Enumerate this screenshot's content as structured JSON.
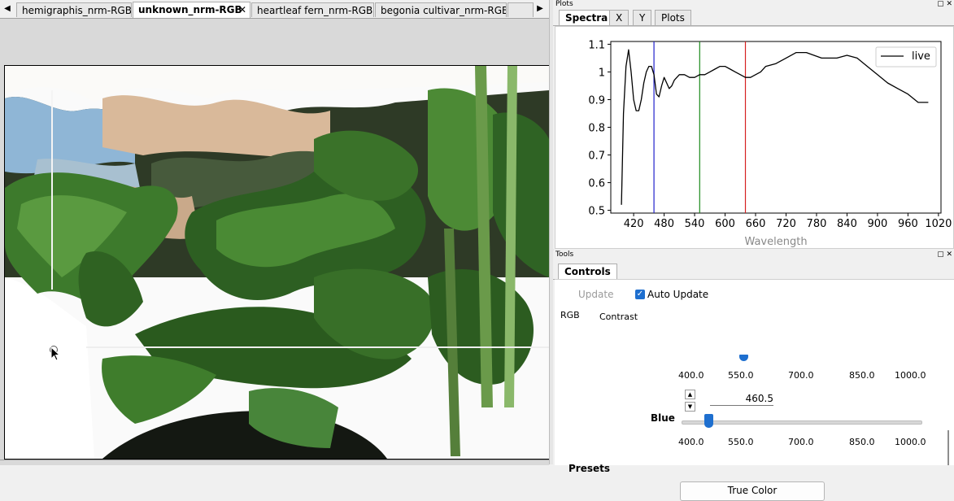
{
  "image_tabs": [
    {
      "label": "hemigraphis_nrm-RGB",
      "active": false
    },
    {
      "label": "unknown_nrm-RGB",
      "active": true
    },
    {
      "label": "heartleaf fern_nrm-RGB",
      "active": false
    },
    {
      "label": "begonia cultivar_nrm-RGB",
      "active": false
    }
  ],
  "plots_dock": {
    "title": "Plots",
    "tabs": [
      "Spectra",
      "X",
      "Y",
      "Plots"
    ],
    "active_tab": "Spectra"
  },
  "chart_data": {
    "type": "line",
    "xlabel": "Wavelength",
    "ylabel": "",
    "xlim": [
      375,
      1025
    ],
    "ylim": [
      0.49,
      1.11
    ],
    "x_ticks": [
      420,
      480,
      540,
      600,
      660,
      720,
      780,
      840,
      900,
      960,
      1020
    ],
    "y_ticks": [
      0.5,
      0.6,
      0.7,
      0.8,
      0.9,
      1.0,
      1.1
    ],
    "x_tick_labels": [
      "420",
      "480",
      "540",
      "600",
      "660",
      "720",
      "780",
      "840",
      "900",
      "960",
      "1020"
    ],
    "y_tick_labels": [
      "0.5",
      "0.6",
      "0.7",
      "0.8",
      "0.9",
      "1",
      "1.1"
    ],
    "legend_position": "top-right",
    "series": [
      {
        "name": "live",
        "color": "#000000",
        "x": [
          396,
          400,
          405,
          410,
          415,
          420,
          425,
          430,
          435,
          440,
          445,
          450,
          455,
          460,
          465,
          470,
          475,
          480,
          485,
          490,
          495,
          500,
          510,
          520,
          530,
          540,
          550,
          560,
          570,
          580,
          590,
          600,
          610,
          620,
          630,
          640,
          650,
          660,
          670,
          680,
          700,
          720,
          740,
          760,
          775,
          790,
          800,
          820,
          840,
          860,
          880,
          900,
          920,
          940,
          960,
          980,
          1000
        ],
        "y": [
          0.52,
          0.85,
          1.02,
          1.08,
          1.0,
          0.9,
          0.86,
          0.86,
          0.9,
          0.96,
          1.0,
          1.02,
          1.02,
          0.99,
          0.92,
          0.91,
          0.95,
          0.98,
          0.96,
          0.94,
          0.95,
          0.97,
          0.99,
          0.99,
          0.98,
          0.98,
          0.99,
          0.99,
          1.0,
          1.01,
          1.02,
          1.02,
          1.01,
          1.0,
          0.99,
          0.98,
          0.98,
          0.99,
          1.0,
          1.02,
          1.03,
          1.05,
          1.07,
          1.07,
          1.06,
          1.05,
          1.05,
          1.05,
          1.06,
          1.05,
          1.02,
          0.99,
          0.96,
          0.94,
          0.92,
          0.89,
          0.89
        ]
      }
    ],
    "vertical_lines": [
      {
        "x": 460,
        "color": "#2222cc"
      },
      {
        "x": 550,
        "color": "#1a8a1a"
      },
      {
        "x": 640,
        "color": "#d62020"
      }
    ]
  },
  "tools_dock": {
    "title": "Tools",
    "tabs": [
      "Controls"
    ],
    "active_tab": "Controls",
    "update_label": "Update",
    "auto_update_label": "Auto Update",
    "auto_update_checked": true,
    "rgb_label": "RGB",
    "contrast_label": "Contrast",
    "contrast_ticks": [
      "400.0",
      "550.0",
      "700.0",
      "850.0",
      "1000.0"
    ],
    "channel_value": "460.5",
    "channel_label": "Blue",
    "channel_ticks": [
      "400.0",
      "550.0",
      "700.0",
      "850.0",
      "1000.0"
    ],
    "presets_label": "Presets",
    "true_color_label": "True Color"
  }
}
